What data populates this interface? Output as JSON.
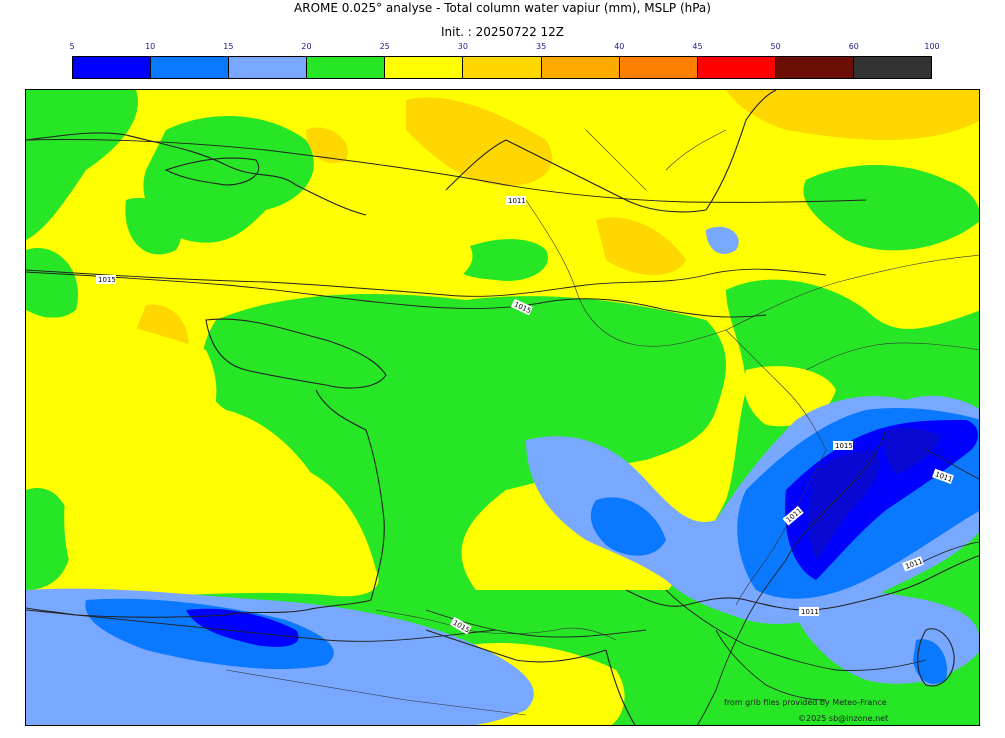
{
  "header": {
    "title": "AROME 0.025° analyse - Total column water vapiur (mm), MSLP (hPa)",
    "init": "Init. : 20250722 12Z"
  },
  "colorbar": {
    "ticks": [
      "5",
      "10",
      "15",
      "20",
      "25",
      "30",
      "35",
      "40",
      "45",
      "50",
      "60",
      "100"
    ],
    "colors": [
      "#0000ff",
      "#0a78ff",
      "#78a8ff",
      "#26e626",
      "#ffff00",
      "#ffd700",
      "#ffaa00",
      "#ff8000",
      "#ff0000",
      "#6b0e06",
      "#333333"
    ]
  },
  "map": {
    "isobar_labels": [
      "1011",
      "1015",
      "1015",
      "1015",
      "1011",
      "1011",
      "1011",
      "1015",
      "1011"
    ],
    "credits": {
      "source": "from grib files provided by Meteo-France",
      "copyright": "©2025 sb@inzone.net"
    }
  }
}
